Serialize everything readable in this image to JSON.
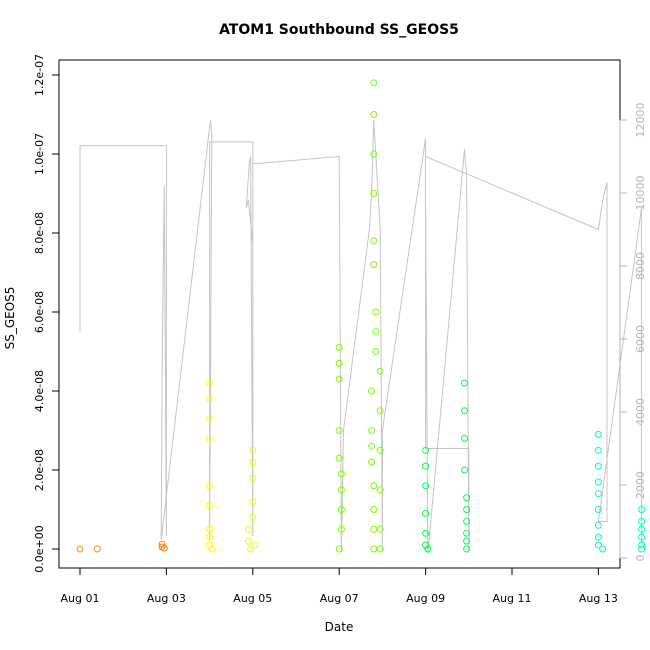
{
  "chart_data": {
    "type": "scatter",
    "title": "ATOM1 Southbound SS_GEOS5",
    "xlabel": "Date",
    "ylabel": "SS_GEOS5",
    "x_ticks": [
      "Aug 01",
      "Aug 03",
      "Aug 05",
      "Aug 07",
      "Aug 09",
      "Aug 11",
      "Aug 13"
    ],
    "y_ticks": [
      "0.0e+00",
      "2.0e-08",
      "4.0e-08",
      "6.0e-08",
      "8.0e-08",
      "1.0e-07",
      "1.2e-07"
    ],
    "y_right_ticks": [
      "0",
      "2000",
      "4000",
      "6000",
      "8000",
      "10000",
      "12000"
    ],
    "xlim_days": [
      0,
      14
    ],
    "ylim": [
      0,
      1.2e-07
    ],
    "y_right_lim": [
      0,
      12000
    ],
    "series": [
      {
        "values": [
          {
            "x": 0.0,
            "y": 0.0,
            "color": "#ff8c00"
          },
          {
            "x": 0.4,
            "y": 0.0,
            "color": "#ff8c00"
          },
          {
            "x": 1.9,
            "y": 5e-10,
            "color": "#ff7f00"
          },
          {
            "x": 1.9,
            "y": 1.2e-09,
            "color": "#ff7f00"
          },
          {
            "x": 1.95,
            "y": 2e-10,
            "color": "#ff7f00"
          },
          {
            "x": 3.0,
            "y": 4.2e-08,
            "color": "#ffff00"
          },
          {
            "x": 3.0,
            "y": 3.8e-08,
            "color": "#ffff00"
          },
          {
            "x": 3.0,
            "y": 3.3e-08,
            "color": "#ffff00"
          },
          {
            "x": 3.0,
            "y": 2.8e-08,
            "color": "#ffff00"
          },
          {
            "x": 3.0,
            "y": 1.6e-08,
            "color": "#ffff00"
          },
          {
            "x": 3.0,
            "y": 1.1e-08,
            "color": "#ffff00"
          },
          {
            "x": 3.0,
            "y": 5e-09,
            "color": "#ffff00"
          },
          {
            "x": 3.0,
            "y": 3e-09,
            "color": "#ffff00"
          },
          {
            "x": 3.0,
            "y": 1e-09,
            "color": "#ffff00"
          },
          {
            "x": 3.05,
            "y": 0.0,
            "color": "#ffff00"
          },
          {
            "x": 3.9,
            "y": 5e-09,
            "color": "#e8ff00"
          },
          {
            "x": 3.9,
            "y": 2e-09,
            "color": "#e8ff00"
          },
          {
            "x": 3.95,
            "y": 0.0,
            "color": "#e8ff00"
          },
          {
            "x": 4.0,
            "y": 2.5e-08,
            "color": "#e8ff00"
          },
          {
            "x": 4.0,
            "y": 2.2e-08,
            "color": "#e8ff00"
          },
          {
            "x": 4.0,
            "y": 1.8e-08,
            "color": "#e8ff00"
          },
          {
            "x": 4.0,
            "y": 1.2e-08,
            "color": "#e8ff00"
          },
          {
            "x": 4.0,
            "y": 8e-09,
            "color": "#e8ff00"
          },
          {
            "x": 4.05,
            "y": 1e-09,
            "color": "#e8ff00"
          },
          {
            "x": 6.0,
            "y": 5.1e-08,
            "color": "#7cff00"
          },
          {
            "x": 6.0,
            "y": 4.7e-08,
            "color": "#7cff00"
          },
          {
            "x": 6.0,
            "y": 4.3e-08,
            "color": "#7cff00"
          },
          {
            "x": 6.0,
            "y": 3e-08,
            "color": "#7cff00"
          },
          {
            "x": 6.0,
            "y": 2.3e-08,
            "color": "#7cff00"
          },
          {
            "x": 6.05,
            "y": 1.9e-08,
            "color": "#7cff00"
          },
          {
            "x": 6.05,
            "y": 1.5e-08,
            "color": "#7cff00"
          },
          {
            "x": 6.05,
            "y": 1e-08,
            "color": "#7cff00"
          },
          {
            "x": 6.05,
            "y": 5e-09,
            "color": "#7cff00"
          },
          {
            "x": 6.0,
            "y": 0.0,
            "color": "#7cff00"
          },
          {
            "x": 6.8,
            "y": 1.18e-07,
            "color": "#78ff00"
          },
          {
            "x": 6.8,
            "y": 1.1e-07,
            "color": "#78ff00"
          },
          {
            "x": 6.8,
            "y": 1e-07,
            "color": "#78ff00"
          },
          {
            "x": 6.8,
            "y": 9e-08,
            "color": "#78ff00"
          },
          {
            "x": 6.8,
            "y": 7.8e-08,
            "color": "#78ff00"
          },
          {
            "x": 6.8,
            "y": 7.2e-08,
            "color": "#78ff00"
          },
          {
            "x": 6.85,
            "y": 6e-08,
            "color": "#78ff00"
          },
          {
            "x": 6.85,
            "y": 5.5e-08,
            "color": "#78ff00"
          },
          {
            "x": 6.85,
            "y": 5e-08,
            "color": "#78ff00"
          },
          {
            "x": 6.75,
            "y": 4e-08,
            "color": "#78ff00"
          },
          {
            "x": 6.75,
            "y": 3e-08,
            "color": "#78ff00"
          },
          {
            "x": 6.75,
            "y": 2.6e-08,
            "color": "#78ff00"
          },
          {
            "x": 6.75,
            "y": 2.2e-08,
            "color": "#78ff00"
          },
          {
            "x": 6.8,
            "y": 1.6e-08,
            "color": "#78ff00"
          },
          {
            "x": 6.8,
            "y": 1e-08,
            "color": "#78ff00"
          },
          {
            "x": 6.8,
            "y": 5e-09,
            "color": "#78ff00"
          },
          {
            "x": 6.8,
            "y": 0.0,
            "color": "#78ff00"
          },
          {
            "x": 6.95,
            "y": 4.5e-08,
            "color": "#78ff00"
          },
          {
            "x": 6.95,
            "y": 3.5e-08,
            "color": "#78ff00"
          },
          {
            "x": 6.95,
            "y": 2.5e-08,
            "color": "#78ff00"
          },
          {
            "x": 6.95,
            "y": 1.5e-08,
            "color": "#78ff00"
          },
          {
            "x": 6.95,
            "y": 5e-09,
            "color": "#78ff00"
          },
          {
            "x": 6.95,
            "y": 0.0,
            "color": "#78ff00"
          },
          {
            "x": 8.0,
            "y": 2.5e-08,
            "color": "#00ff40"
          },
          {
            "x": 8.0,
            "y": 2.1e-08,
            "color": "#00ff40"
          },
          {
            "x": 8.0,
            "y": 1.6e-08,
            "color": "#00ff40"
          },
          {
            "x": 8.0,
            "y": 9e-09,
            "color": "#00ff40"
          },
          {
            "x": 8.0,
            "y": 4e-09,
            "color": "#00ff40"
          },
          {
            "x": 8.0,
            "y": 1e-09,
            "color": "#00ff40"
          },
          {
            "x": 8.05,
            "y": 0.0,
            "color": "#00ff40"
          },
          {
            "x": 8.9,
            "y": 4.2e-08,
            "color": "#00ff55"
          },
          {
            "x": 8.9,
            "y": 3.5e-08,
            "color": "#00ff55"
          },
          {
            "x": 8.9,
            "y": 2.8e-08,
            "color": "#00ff55"
          },
          {
            "x": 8.9,
            "y": 2e-08,
            "color": "#00ff55"
          },
          {
            "x": 8.95,
            "y": 1.3e-08,
            "color": "#00ff55"
          },
          {
            "x": 8.95,
            "y": 1e-08,
            "color": "#00ff55"
          },
          {
            "x": 8.95,
            "y": 7e-09,
            "color": "#00ff55"
          },
          {
            "x": 8.95,
            "y": 4e-09,
            "color": "#00ff55"
          },
          {
            "x": 8.95,
            "y": 2e-09,
            "color": "#00ff55"
          },
          {
            "x": 8.95,
            "y": 0.0,
            "color": "#00ff55"
          },
          {
            "x": 12.0,
            "y": 2.9e-08,
            "color": "#00ffb0"
          },
          {
            "x": 12.0,
            "y": 2.5e-08,
            "color": "#00ffb0"
          },
          {
            "x": 12.0,
            "y": 2.1e-08,
            "color": "#00ffb0"
          },
          {
            "x": 12.0,
            "y": 1.7e-08,
            "color": "#00ffb0"
          },
          {
            "x": 12.0,
            "y": 1.4e-08,
            "color": "#00ffb0"
          },
          {
            "x": 12.0,
            "y": 1e-08,
            "color": "#00ffb0"
          },
          {
            "x": 12.0,
            "y": 6e-09,
            "color": "#00ffb0"
          },
          {
            "x": 12.0,
            "y": 3e-09,
            "color": "#00ffb0"
          },
          {
            "x": 12.0,
            "y": 1e-09,
            "color": "#00ffb0"
          },
          {
            "x": 12.1,
            "y": 0.0,
            "color": "#00ffb0"
          },
          {
            "x": 13.0,
            "y": 1e-08,
            "color": "#00ffc0"
          },
          {
            "x": 13.0,
            "y": 7e-09,
            "color": "#00ffc0"
          },
          {
            "x": 13.0,
            "y": 5e-09,
            "color": "#00ffc0"
          },
          {
            "x": 13.0,
            "y": 3e-09,
            "color": "#00ffc0"
          },
          {
            "x": 13.0,
            "y": 1e-09,
            "color": "#00ffc0"
          },
          {
            "x": 13.0,
            "y": 0.0,
            "color": "#00ffc0"
          }
        ]
      }
    ],
    "altitude_line": {
      "color": "#c4c4c4",
      "x": [
        0.0,
        0.0,
        0.0,
        0.6,
        1.85,
        1.9,
        1.95,
        2.0,
        2.0,
        1.95,
        1.9,
        1.88,
        3.0,
        3.02,
        3.05,
        3.0,
        3.0,
        4.0,
        4.0,
        3.9,
        3.85,
        3.92,
        3.95,
        4.0,
        4.0,
        6.0,
        6.0,
        6.05,
        6.1,
        6.7,
        6.75,
        6.8,
        6.85,
        6.95,
        7.0,
        7.0,
        8.0,
        8.0,
        8.05,
        8.9,
        8.95,
        9.0,
        9.0,
        8.0,
        8.0,
        12.0,
        12.1,
        12.2,
        12.2,
        12.0,
        13.0,
        13.0,
        13.05
      ],
      "y": [
        6200,
        11300,
        11300,
        11300,
        11300,
        11300,
        11300,
        11300,
        600,
        10200,
        5000,
        500,
        11800,
        12000,
        11600,
        500,
        11400,
        11400,
        8600,
        9800,
        9600,
        10800,
        11000,
        600,
        10800,
        11000,
        11000,
        200,
        3500,
        9000,
        10000,
        12000,
        11000,
        9000,
        200,
        3500,
        11500,
        9700,
        100,
        11200,
        10500,
        150,
        3000,
        3000,
        11000,
        9000,
        9800,
        10300,
        1000,
        1000,
        9600,
        500,
        300
      ]
    }
  }
}
